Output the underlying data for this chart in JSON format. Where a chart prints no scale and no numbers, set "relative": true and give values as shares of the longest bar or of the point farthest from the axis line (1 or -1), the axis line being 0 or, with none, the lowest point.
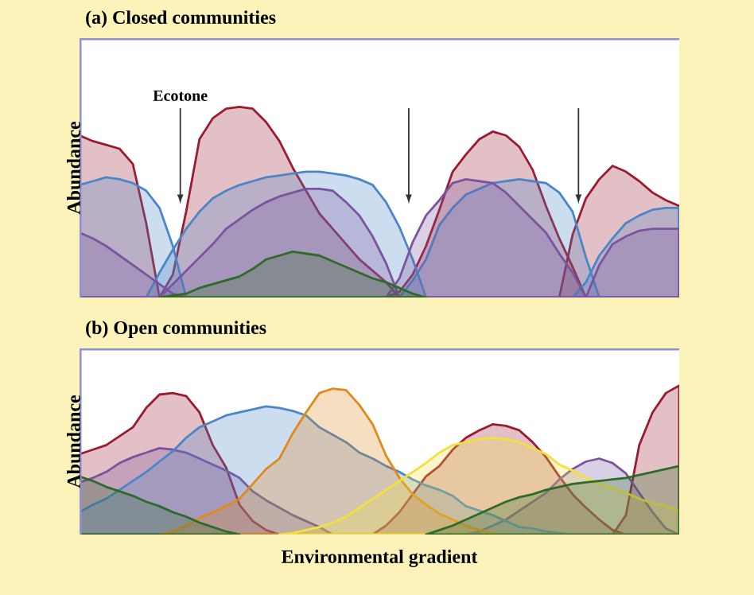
{
  "chart_data": [
    {
      "type": "area",
      "title": "(a)   Closed communities",
      "ylabel": "Abundance",
      "relative": true,
      "tick_labels": false,
      "annotations": [
        "Ecotone"
      ],
      "categories": [
        null,
        null,
        null,
        null,
        null,
        null,
        null,
        null,
        null,
        null,
        null,
        null,
        null,
        null,
        null,
        null,
        null,
        null,
        null,
        null,
        null,
        null,
        null,
        null,
        null,
        null,
        null,
        null,
        null,
        null,
        null,
        null,
        null,
        null,
        null,
        null,
        null,
        null,
        null,
        null,
        null,
        null,
        null,
        null,
        null,
        null
      ],
      "series": [
        {
          "color": "#9b1b30",
          "values": [
            0.85,
            0.82,
            0.8,
            0.78,
            0.7,
            0.39,
            0,
            null,
            null,
            null,
            null,
            null,
            null,
            null,
            null,
            null,
            null,
            null,
            null,
            null,
            null,
            null,
            null,
            null,
            null,
            null,
            null,
            null,
            null,
            null,
            null,
            null,
            null,
            null,
            null,
            null,
            null,
            null,
            null,
            null,
            null,
            null,
            null,
            null,
            null,
            null
          ]
        },
        {
          "color": "#9b1b30",
          "values": [
            null,
            null,
            null,
            null,
            null,
            null,
            0,
            0.12,
            0.45,
            0.83,
            0.94,
            0.99,
            1.0,
            0.99,
            0.92,
            0.82,
            0.68,
            0.56,
            0.44,
            0.36,
            0.28,
            0.2,
            0.14,
            0.08,
            0,
            null,
            null,
            null,
            null,
            null,
            null,
            null,
            null,
            null,
            null,
            null,
            null,
            null,
            null,
            null,
            null,
            null,
            null,
            null,
            null,
            null
          ]
        },
        {
          "color": "#9b1b30",
          "values": [
            null,
            null,
            null,
            null,
            null,
            null,
            null,
            null,
            null,
            null,
            null,
            null,
            null,
            null,
            null,
            null,
            null,
            null,
            null,
            null,
            null,
            null,
            null,
            0,
            0.03,
            0.12,
            0.27,
            0.46,
            0.66,
            0.75,
            0.83,
            0.87,
            0.85,
            0.79,
            0.67,
            0.48,
            0.31,
            0.16,
            0,
            null,
            null,
            null,
            null,
            null,
            null,
            null
          ]
        },
        {
          "color": "#9b1b30",
          "values": [
            null,
            null,
            null,
            null,
            null,
            null,
            null,
            null,
            null,
            null,
            null,
            null,
            null,
            null,
            null,
            null,
            null,
            null,
            null,
            null,
            null,
            null,
            null,
            null,
            null,
            null,
            null,
            null,
            null,
            null,
            null,
            null,
            null,
            null,
            null,
            null,
            0,
            0.33,
            0.52,
            0.62,
            0.69,
            0.66,
            0.61,
            0.55,
            0.51,
            0.48
          ]
        },
        {
          "color": "#4a86c8",
          "values": [
            0.59,
            0.61,
            0.63,
            0.62,
            0.6,
            0.56,
            0.47,
            0.27,
            0,
            null,
            null,
            null,
            null,
            null,
            null,
            null,
            null,
            null,
            null,
            null,
            null,
            null,
            null,
            null,
            null,
            null,
            null,
            null,
            null,
            null,
            null,
            null,
            null,
            null,
            null,
            null,
            null,
            null,
            null,
            null,
            null,
            null,
            null,
            null,
            null,
            null
          ]
        },
        {
          "color": "#4a86c8",
          "values": [
            null,
            null,
            null,
            null,
            null,
            0,
            0.13,
            0.25,
            0.36,
            0.45,
            0.52,
            0.56,
            0.59,
            0.61,
            0.63,
            0.64,
            0.65,
            0.66,
            0.66,
            0.65,
            0.64,
            0.62,
            0.59,
            0.5,
            0.37,
            0.2,
            0,
            null,
            null,
            null,
            null,
            null,
            null,
            null,
            null,
            null,
            null,
            null,
            null,
            null,
            null,
            null,
            null,
            null,
            null,
            null
          ]
        },
        {
          "color": "#4a86c8",
          "values": [
            null,
            null,
            null,
            null,
            null,
            null,
            null,
            null,
            null,
            null,
            null,
            null,
            null,
            null,
            null,
            null,
            null,
            null,
            null,
            null,
            null,
            null,
            null,
            null,
            0,
            0.09,
            0.2,
            0.38,
            0.47,
            0.54,
            0.57,
            0.6,
            0.61,
            0.62,
            0.61,
            0.6,
            0.55,
            0.45,
            0.21,
            0,
            null,
            null,
            null,
            null,
            null,
            null
          ]
        },
        {
          "color": "#4a86c8",
          "values": [
            null,
            null,
            null,
            null,
            null,
            null,
            null,
            null,
            null,
            null,
            null,
            null,
            null,
            null,
            null,
            null,
            null,
            null,
            null,
            null,
            null,
            null,
            null,
            null,
            null,
            null,
            null,
            null,
            null,
            null,
            null,
            null,
            null,
            null,
            null,
            null,
            null,
            0,
            0.08,
            0.22,
            0.31,
            0.39,
            0.43,
            0.46,
            0.47,
            0.47
          ]
        },
        {
          "color": "#7a559e",
          "values": [
            0.34,
            0.31,
            0.27,
            0.22,
            0.17,
            0.12,
            0.07,
            0.02,
            0,
            null,
            null,
            null,
            null,
            null,
            null,
            null,
            null,
            null,
            null,
            null,
            null,
            null,
            null,
            null,
            null,
            null,
            null,
            null,
            null,
            null,
            null,
            null,
            null,
            null,
            null,
            null,
            null,
            null,
            null,
            null,
            null,
            null,
            null,
            null,
            null,
            null
          ]
        },
        {
          "color": "#7a559e",
          "values": [
            null,
            null,
            null,
            null,
            null,
            null,
            0,
            0.07,
            0.14,
            0.21,
            0.28,
            0.36,
            0.41,
            0.46,
            0.5,
            0.53,
            0.55,
            0.57,
            0.57,
            0.56,
            0.5,
            0.43,
            0.32,
            0.18,
            0,
            null,
            null,
            null,
            null,
            null,
            null,
            null,
            null,
            null,
            null,
            null,
            null,
            null,
            null,
            null,
            null,
            null,
            null,
            null,
            null,
            null
          ]
        },
        {
          "color": "#7a559e",
          "values": [
            null,
            null,
            null,
            null,
            null,
            null,
            null,
            null,
            null,
            null,
            null,
            null,
            null,
            null,
            null,
            null,
            null,
            null,
            null,
            null,
            null,
            null,
            null,
            0,
            0.1,
            0.29,
            0.43,
            0.51,
            0.6,
            0.62,
            0.61,
            0.6,
            0.55,
            0.48,
            0.41,
            0.34,
            0.23,
            0.13,
            0,
            null,
            null,
            null,
            null,
            null,
            null,
            null
          ]
        },
        {
          "color": "#7a559e",
          "values": [
            null,
            null,
            null,
            null,
            null,
            null,
            null,
            null,
            null,
            null,
            null,
            null,
            null,
            null,
            null,
            null,
            null,
            null,
            null,
            null,
            null,
            null,
            null,
            null,
            null,
            null,
            null,
            null,
            null,
            null,
            null,
            null,
            null,
            null,
            null,
            null,
            null,
            null,
            0,
            0.17,
            0.28,
            0.32,
            0.35,
            0.36,
            0.36,
            0.36
          ]
        },
        {
          "color": "#2e6b2a",
          "values": [
            null,
            null,
            null,
            null,
            null,
            null,
            0,
            0.01,
            0.02,
            0.05,
            0.07,
            0.09,
            0.11,
            0.15,
            0.2,
            0.22,
            0.24,
            0.23,
            0.22,
            0.19,
            0.16,
            0.13,
            0.1,
            0.08,
            0.05,
            0.02,
            0,
            null,
            null,
            null,
            null,
            null,
            null,
            null,
            null,
            null,
            null,
            null,
            null,
            null,
            null,
            null,
            null,
            null,
            null,
            null
          ]
        }
      ]
    },
    {
      "type": "area",
      "title": "(b)   Open communities",
      "ylabel": "Abundance",
      "xlabel": "Environmental gradient",
      "relative": true,
      "tick_labels": false,
      "categories": [
        null,
        null,
        null,
        null,
        null,
        null,
        null,
        null,
        null,
        null,
        null,
        null,
        null,
        null,
        null,
        null,
        null,
        null,
        null,
        null,
        null,
        null,
        null,
        null,
        null,
        null,
        null,
        null,
        null,
        null,
        null,
        null,
        null,
        null,
        null,
        null,
        null,
        null,
        null,
        null,
        null,
        null,
        null,
        null,
        null,
        null
      ],
      "series": [
        {
          "color": "#9b1b30",
          "values": [
            0.54,
            0.57,
            0.6,
            0.66,
            0.72,
            0.85,
            0.94,
            0.95,
            0.93,
            0.82,
            0.6,
            0.45,
            0.2,
            0.09,
            0.03,
            0,
            null,
            null,
            null,
            null,
            null,
            null,
            null,
            null,
            null,
            null,
            null,
            null,
            null,
            null,
            null,
            null,
            null,
            null,
            null,
            null,
            null,
            null,
            null,
            null,
            null,
            null,
            null,
            null,
            null,
            null
          ]
        },
        {
          "color": "#9b1b30",
          "values": [
            null,
            null,
            null,
            null,
            null,
            null,
            null,
            null,
            null,
            null,
            null,
            null,
            null,
            null,
            null,
            null,
            null,
            null,
            null,
            null,
            null,
            null,
            0,
            0.06,
            0.15,
            0.27,
            0.39,
            0.46,
            0.57,
            0.65,
            0.7,
            0.74,
            0.73,
            0.7,
            0.62,
            0.52,
            0.39,
            0.27,
            0.18,
            0.1,
            0.03,
            0,
            null,
            null,
            null,
            null
          ]
        },
        {
          "color": "#9b1b30",
          "values": [
            null,
            null,
            null,
            null,
            null,
            null,
            null,
            null,
            null,
            null,
            null,
            null,
            null,
            null,
            null,
            null,
            null,
            null,
            null,
            null,
            null,
            null,
            null,
            null,
            null,
            null,
            null,
            null,
            null,
            null,
            null,
            null,
            null,
            null,
            null,
            null,
            null,
            null,
            null,
            null,
            0,
            0.13,
            0.6,
            0.82,
            0.95,
            1.0
          ]
        },
        {
          "color": "#7a559e",
          "values": [
            0.35,
            0.38,
            0.42,
            0.48,
            0.52,
            0.55,
            0.58,
            0.57,
            0.55,
            0.51,
            0.47,
            0.43,
            0.38,
            0.29,
            0.23,
            0.18,
            0.13,
            0.09,
            0.05,
            0,
            null,
            null,
            null,
            null,
            null,
            null,
            null,
            null,
            null,
            null,
            null,
            null,
            null,
            null,
            null,
            null,
            null,
            null,
            null,
            null,
            null,
            null,
            null,
            null,
            null,
            null
          ]
        },
        {
          "color": "#7a559e",
          "values": [
            null,
            null,
            null,
            null,
            null,
            null,
            null,
            null,
            null,
            null,
            null,
            null,
            null,
            null,
            null,
            null,
            null,
            null,
            null,
            null,
            null,
            null,
            null,
            null,
            null,
            null,
            null,
            null,
            null,
            0,
            0.02,
            0.06,
            0.1,
            0.16,
            0.22,
            0.28,
            0.37,
            0.44,
            0.49,
            0.51,
            0.48,
            0.41,
            0.28,
            0.15,
            0.04,
            0
          ]
        },
        {
          "color": "#4a86c8",
          "values": [
            0.15,
            0.2,
            0.24,
            0.3,
            0.36,
            0.42,
            0.49,
            0.56,
            0.65,
            0.72,
            0.76,
            0.8,
            0.82,
            0.84,
            0.86,
            0.85,
            0.83,
            0.8,
            0.72,
            0.67,
            0.62,
            0.55,
            0.51,
            0.46,
            0.42,
            0.37,
            0.33,
            0.3,
            0.26,
            0.19,
            0.16,
            0.13,
            0.09,
            0.05,
            0.04,
            0.02,
            0.01,
            0,
            null,
            null,
            null,
            null,
            null,
            null,
            null,
            null
          ]
        },
        {
          "color": "#e08a1e",
          "values": [
            null,
            null,
            null,
            null,
            null,
            null,
            0,
            0.02,
            0.06,
            0.11,
            0.15,
            0.19,
            0.24,
            0.34,
            0.44,
            0.51,
            0.68,
            0.82,
            0.95,
            0.98,
            0.97,
            0.87,
            0.74,
            0.53,
            0.38,
            0.27,
            0.2,
            0.14,
            0.1,
            0.06,
            0.03,
            0.01,
            0,
            null,
            null,
            null,
            null,
            null,
            null,
            null,
            null,
            null,
            null,
            null,
            null,
            null
          ]
        },
        {
          "color": "#f2e040",
          "values": [
            null,
            null,
            null,
            null,
            null,
            null,
            null,
            null,
            null,
            null,
            null,
            null,
            null,
            null,
            null,
            0,
            0.01,
            0.03,
            0.05,
            0.08,
            0.12,
            0.18,
            0.24,
            0.3,
            0.36,
            0.42,
            0.48,
            0.55,
            0.6,
            0.62,
            0.64,
            0.65,
            0.64,
            0.62,
            0.58,
            0.54,
            0.47,
            0.43,
            0.38,
            0.34,
            0.31,
            0.28,
            0.24,
            0.21,
            0.19,
            0.16
          ]
        },
        {
          "color": "#2e6b2a",
          "values": [
            0.39,
            0.36,
            0.32,
            0.29,
            0.26,
            0.22,
            0.19,
            0.15,
            0.12,
            0.08,
            0.05,
            0.02,
            0,
            null,
            null,
            null,
            null,
            null,
            null,
            null,
            null,
            null,
            null,
            null,
            null,
            null,
            null,
            null,
            null,
            null,
            null,
            null,
            null,
            null,
            null,
            null,
            null,
            null,
            null,
            null,
            null,
            null,
            null,
            null,
            null,
            null
          ]
        },
        {
          "color": "#2e6b2a",
          "values": [
            null,
            null,
            null,
            null,
            null,
            null,
            null,
            null,
            null,
            null,
            null,
            null,
            null,
            null,
            null,
            null,
            null,
            null,
            null,
            null,
            null,
            null,
            null,
            null,
            null,
            null,
            0,
            0.03,
            0.06,
            0.1,
            0.14,
            0.18,
            0.22,
            0.25,
            0.27,
            0.3,
            0.32,
            0.34,
            0.35,
            0.36,
            0.37,
            0.38,
            0.4,
            0.42,
            0.44,
            0.46
          ]
        }
      ]
    }
  ]
}
